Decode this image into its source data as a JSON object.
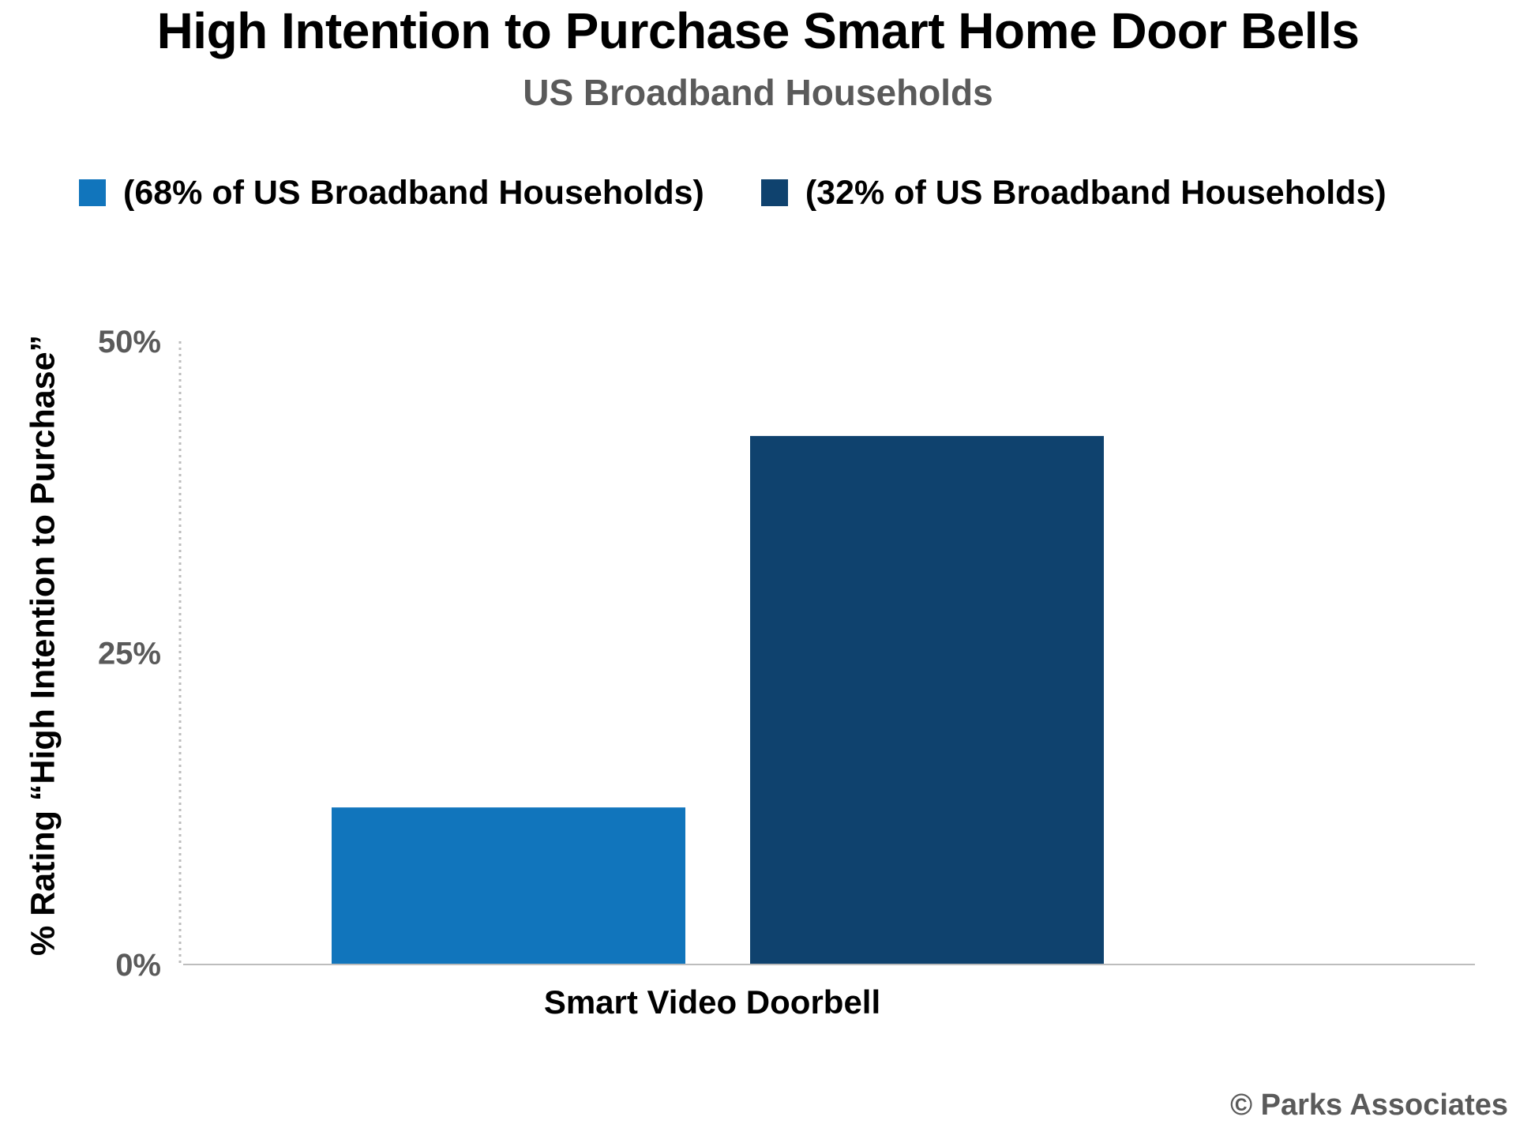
{
  "colors": {
    "series_1": "#1175bc",
    "series_2": "#0f426e",
    "subtitle_gray": "#5a5a5a",
    "axis_gray": "#bdbdbd"
  },
  "chart_data": {
    "type": "bar",
    "title": "High Intention to Purchase Smart Home Door Bells",
    "subtitle": "US Broadband Households",
    "ylabel": "% Rating “High Intention to Purchase”",
    "xlabel": "",
    "categories": [
      "Smart Video Doorbell"
    ],
    "series": [
      {
        "name": "(68% of US Broadband Households)",
        "values": [
          12.6
        ]
      },
      {
        "name": "(32% of US Broadband Households)",
        "values": [
          42.4
        ]
      }
    ],
    "ylim": [
      0,
      50
    ],
    "yticks": [
      0,
      25,
      50
    ],
    "ytick_labels": [
      "0%",
      "25%",
      "50%"
    ],
    "grid": false,
    "legend_position": "top"
  },
  "footer": {
    "copyright": "© Parks Associates"
  }
}
